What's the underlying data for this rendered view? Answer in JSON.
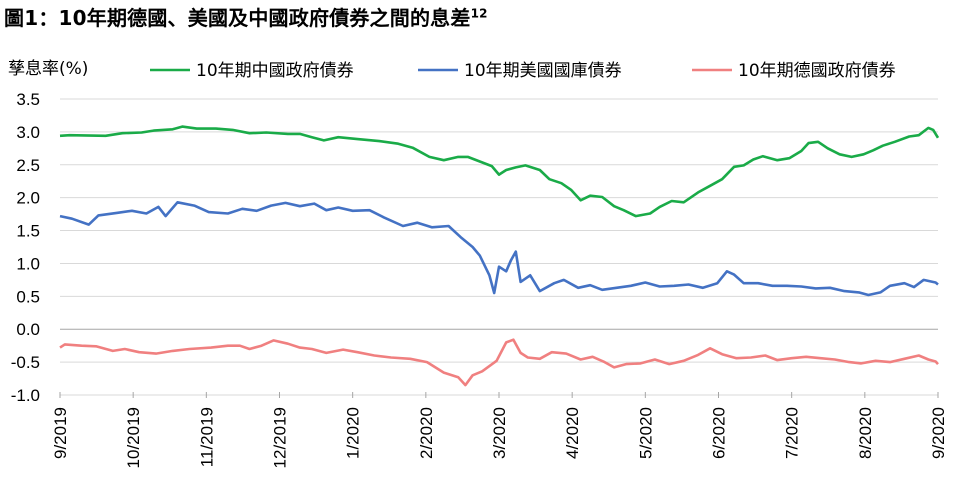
{
  "chart_data": {
    "type": "line",
    "title": "圖1：10年期德國、美國及中國政府債券之間的息差",
    "title_sup": "12",
    "xlabel": "",
    "ylabel": "孳息率(%)",
    "ylim": [
      -1.0,
      3.5
    ],
    "yticks": [
      "3.5",
      "3.0",
      "2.5",
      "2.0",
      "1.5",
      "1.0",
      "0.5",
      "0.0",
      "-0.5",
      "-1.0"
    ],
    "xticks": [
      "9/2019",
      "10/2019",
      "11/2019",
      "12/2019",
      "1/2020",
      "2/2020",
      "3/2020",
      "4/2020",
      "5/2020",
      "6/2020",
      "7/2020",
      "8/2020",
      "9/2020"
    ],
    "xlim": [
      "2019-09-01",
      "2020-09-01"
    ],
    "grid": "horizontal",
    "legend_position": "top",
    "series": [
      {
        "name": "10年期中國政府債券",
        "color": "#1aab48",
        "points": [
          [
            "2019-09-01",
            2.94
          ],
          [
            "2019-09-05",
            2.95
          ],
          [
            "2019-09-20",
            2.94
          ],
          [
            "2019-09-27",
            2.98
          ],
          [
            "2019-10-05",
            2.99
          ],
          [
            "2019-10-10",
            3.02
          ],
          [
            "2019-10-18",
            3.04
          ],
          [
            "2019-10-22",
            3.08
          ],
          [
            "2019-10-28",
            3.05
          ],
          [
            "2019-11-05",
            3.05
          ],
          [
            "2019-11-12",
            3.03
          ],
          [
            "2019-11-19",
            2.98
          ],
          [
            "2019-11-26",
            2.99
          ],
          [
            "2019-12-05",
            2.97
          ],
          [
            "2019-12-10",
            2.97
          ],
          [
            "2019-12-15",
            2.92
          ],
          [
            "2019-12-20",
            2.87
          ],
          [
            "2019-12-26",
            2.92
          ],
          [
            "2020-01-03",
            2.89
          ],
          [
            "2020-01-12",
            2.86
          ],
          [
            "2020-01-20",
            2.82
          ],
          [
            "2020-01-26",
            2.76
          ],
          [
            "2020-02-02",
            2.62
          ],
          [
            "2020-02-08",
            2.57
          ],
          [
            "2020-02-14",
            2.62
          ],
          [
            "2020-02-18",
            2.62
          ],
          [
            "2020-02-23",
            2.55
          ],
          [
            "2020-02-28",
            2.48
          ],
          [
            "2020-03-02",
            2.35
          ],
          [
            "2020-03-05",
            2.42
          ],
          [
            "2020-03-09",
            2.46
          ],
          [
            "2020-03-13",
            2.49
          ],
          [
            "2020-03-19",
            2.42
          ],
          [
            "2020-03-23",
            2.28
          ],
          [
            "2020-03-28",
            2.22
          ],
          [
            "2020-04-01",
            2.12
          ],
          [
            "2020-04-05",
            1.96
          ],
          [
            "2020-04-09",
            2.03
          ],
          [
            "2020-04-14",
            2.01
          ],
          [
            "2020-04-19",
            1.87
          ],
          [
            "2020-04-23",
            1.81
          ],
          [
            "2020-04-28",
            1.72
          ],
          [
            "2020-05-04",
            1.76
          ],
          [
            "2020-05-08",
            1.86
          ],
          [
            "2020-05-13",
            1.95
          ],
          [
            "2020-05-18",
            1.93
          ],
          [
            "2020-05-24",
            2.08
          ],
          [
            "2020-05-29",
            2.18
          ],
          [
            "2020-06-03",
            2.28
          ],
          [
            "2020-06-08",
            2.47
          ],
          [
            "2020-06-12",
            2.49
          ],
          [
            "2020-06-16",
            2.58
          ],
          [
            "2020-06-20",
            2.63
          ],
          [
            "2020-06-26",
            2.57
          ],
          [
            "2020-07-01",
            2.6
          ],
          [
            "2020-07-06",
            2.71
          ],
          [
            "2020-07-09",
            2.83
          ],
          [
            "2020-07-13",
            2.85
          ],
          [
            "2020-07-17",
            2.75
          ],
          [
            "2020-07-22",
            2.66
          ],
          [
            "2020-07-27",
            2.62
          ],
          [
            "2020-08-01",
            2.66
          ],
          [
            "2020-08-05",
            2.72
          ],
          [
            "2020-08-09",
            2.79
          ],
          [
            "2020-08-14",
            2.85
          ],
          [
            "2020-08-20",
            2.93
          ],
          [
            "2020-08-24",
            2.95
          ],
          [
            "2020-08-28",
            3.06
          ],
          [
            "2020-08-30",
            3.03
          ],
          [
            "2020-09-01",
            2.91
          ]
        ]
      },
      {
        "name": "10年期美國國庫債券",
        "color": "#4472c4",
        "points": [
          [
            "2019-09-01",
            1.72
          ],
          [
            "2019-09-06",
            1.68
          ],
          [
            "2019-09-13",
            1.59
          ],
          [
            "2019-09-17",
            1.73
          ],
          [
            "2019-09-25",
            1.77
          ],
          [
            "2019-10-01",
            1.8
          ],
          [
            "2019-10-07",
            1.76
          ],
          [
            "2019-10-12",
            1.86
          ],
          [
            "2019-10-15",
            1.72
          ],
          [
            "2019-10-20",
            1.93
          ],
          [
            "2019-10-27",
            1.88
          ],
          [
            "2019-11-02",
            1.78
          ],
          [
            "2019-11-10",
            1.76
          ],
          [
            "2019-11-16",
            1.83
          ],
          [
            "2019-11-22",
            1.8
          ],
          [
            "2019-11-28",
            1.88
          ],
          [
            "2019-12-04",
            1.92
          ],
          [
            "2019-12-10",
            1.87
          ],
          [
            "2019-12-16",
            1.91
          ],
          [
            "2019-12-21",
            1.81
          ],
          [
            "2019-12-26",
            1.85
          ],
          [
            "2020-01-01",
            1.8
          ],
          [
            "2020-01-08",
            1.81
          ],
          [
            "2020-01-14",
            1.7
          ],
          [
            "2020-01-22",
            1.57
          ],
          [
            "2020-01-28",
            1.62
          ],
          [
            "2020-02-03",
            1.55
          ],
          [
            "2020-02-10",
            1.57
          ],
          [
            "2020-02-15",
            1.4
          ],
          [
            "2020-02-20",
            1.25
          ],
          [
            "2020-02-23",
            1.12
          ],
          [
            "2020-02-27",
            0.82
          ],
          [
            "2020-02-29",
            0.55
          ],
          [
            "2020-03-02",
            0.95
          ],
          [
            "2020-03-05",
            0.88
          ],
          [
            "2020-03-07",
            1.05
          ],
          [
            "2020-03-09",
            1.18
          ],
          [
            "2020-03-11",
            0.72
          ],
          [
            "2020-03-15",
            0.82
          ],
          [
            "2020-03-19",
            0.58
          ],
          [
            "2020-03-25",
            0.7
          ],
          [
            "2020-03-29",
            0.75
          ],
          [
            "2020-04-04",
            0.63
          ],
          [
            "2020-04-09",
            0.67
          ],
          [
            "2020-04-14",
            0.6
          ],
          [
            "2020-04-20",
            0.63
          ],
          [
            "2020-04-26",
            0.66
          ],
          [
            "2020-05-02",
            0.71
          ],
          [
            "2020-05-08",
            0.65
          ],
          [
            "2020-05-14",
            0.66
          ],
          [
            "2020-05-20",
            0.68
          ],
          [
            "2020-05-26",
            0.63
          ],
          [
            "2020-06-01",
            0.7
          ],
          [
            "2020-06-05",
            0.88
          ],
          [
            "2020-06-08",
            0.83
          ],
          [
            "2020-06-12",
            0.7
          ],
          [
            "2020-06-18",
            0.7
          ],
          [
            "2020-06-24",
            0.66
          ],
          [
            "2020-06-30",
            0.66
          ],
          [
            "2020-07-06",
            0.65
          ],
          [
            "2020-07-12",
            0.62
          ],
          [
            "2020-07-18",
            0.63
          ],
          [
            "2020-07-24",
            0.58
          ],
          [
            "2020-07-30",
            0.56
          ],
          [
            "2020-08-03",
            0.52
          ],
          [
            "2020-08-08",
            0.56
          ],
          [
            "2020-08-12",
            0.66
          ],
          [
            "2020-08-18",
            0.7
          ],
          [
            "2020-08-22",
            0.64
          ],
          [
            "2020-08-26",
            0.75
          ],
          [
            "2020-08-31",
            0.71
          ],
          [
            "2020-09-01",
            0.68
          ]
        ]
      },
      {
        "name": "10年期德國政府債券",
        "color": "#f08080",
        "points": [
          [
            "2019-09-01",
            -0.28
          ],
          [
            "2019-09-03",
            -0.23
          ],
          [
            "2019-09-10",
            -0.25
          ],
          [
            "2019-09-16",
            -0.26
          ],
          [
            "2019-09-23",
            -0.33
          ],
          [
            "2019-09-28",
            -0.3
          ],
          [
            "2019-10-04",
            -0.35
          ],
          [
            "2019-10-11",
            -0.37
          ],
          [
            "2019-10-18",
            -0.33
          ],
          [
            "2019-10-25",
            -0.3
          ],
          [
            "2019-11-03",
            -0.28
          ],
          [
            "2019-11-10",
            -0.25
          ],
          [
            "2019-11-15",
            -0.25
          ],
          [
            "2019-11-19",
            -0.3
          ],
          [
            "2019-11-24",
            -0.25
          ],
          [
            "2019-11-29",
            -0.17
          ],
          [
            "2019-12-05",
            -0.22
          ],
          [
            "2019-12-10",
            -0.28
          ],
          [
            "2019-12-15",
            -0.3
          ],
          [
            "2019-12-21",
            -0.36
          ],
          [
            "2019-12-28",
            -0.31
          ],
          [
            "2020-01-03",
            -0.35
          ],
          [
            "2020-01-10",
            -0.4
          ],
          [
            "2020-01-17",
            -0.43
          ],
          [
            "2020-01-25",
            -0.45
          ],
          [
            "2020-02-01",
            -0.5
          ],
          [
            "2020-02-08",
            -0.66
          ],
          [
            "2020-02-14",
            -0.73
          ],
          [
            "2020-02-17",
            -0.85
          ],
          [
            "2020-02-20",
            -0.7
          ],
          [
            "2020-02-24",
            -0.64
          ],
          [
            "2020-03-01",
            -0.48
          ],
          [
            "2020-03-05",
            -0.2
          ],
          [
            "2020-03-08",
            -0.16
          ],
          [
            "2020-03-11",
            -0.36
          ],
          [
            "2020-03-14",
            -0.43
          ],
          [
            "2020-03-19",
            -0.45
          ],
          [
            "2020-03-24",
            -0.35
          ],
          [
            "2020-03-30",
            -0.37
          ],
          [
            "2020-04-05",
            -0.46
          ],
          [
            "2020-04-10",
            -0.42
          ],
          [
            "2020-04-15",
            -0.5
          ],
          [
            "2020-04-19",
            -0.58
          ],
          [
            "2020-04-24",
            -0.53
          ],
          [
            "2020-04-30",
            -0.52
          ],
          [
            "2020-05-06",
            -0.46
          ],
          [
            "2020-05-12",
            -0.53
          ],
          [
            "2020-05-18",
            -0.48
          ],
          [
            "2020-05-24",
            -0.39
          ],
          [
            "2020-05-29",
            -0.29
          ],
          [
            "2020-06-03",
            -0.38
          ],
          [
            "2020-06-09",
            -0.44
          ],
          [
            "2020-06-15",
            -0.43
          ],
          [
            "2020-06-21",
            -0.4
          ],
          [
            "2020-06-26",
            -0.47
          ],
          [
            "2020-07-02",
            -0.44
          ],
          [
            "2020-07-08",
            -0.42
          ],
          [
            "2020-07-14",
            -0.44
          ],
          [
            "2020-07-20",
            -0.46
          ],
          [
            "2020-07-26",
            -0.5
          ],
          [
            "2020-07-31",
            -0.52
          ],
          [
            "2020-08-06",
            -0.48
          ],
          [
            "2020-08-12",
            -0.5
          ],
          [
            "2020-08-18",
            -0.45
          ],
          [
            "2020-08-24",
            -0.4
          ],
          [
            "2020-08-28",
            -0.46
          ],
          [
            "2020-08-31",
            -0.49
          ],
          [
            "2020-09-01",
            -0.53
          ]
        ]
      }
    ]
  }
}
